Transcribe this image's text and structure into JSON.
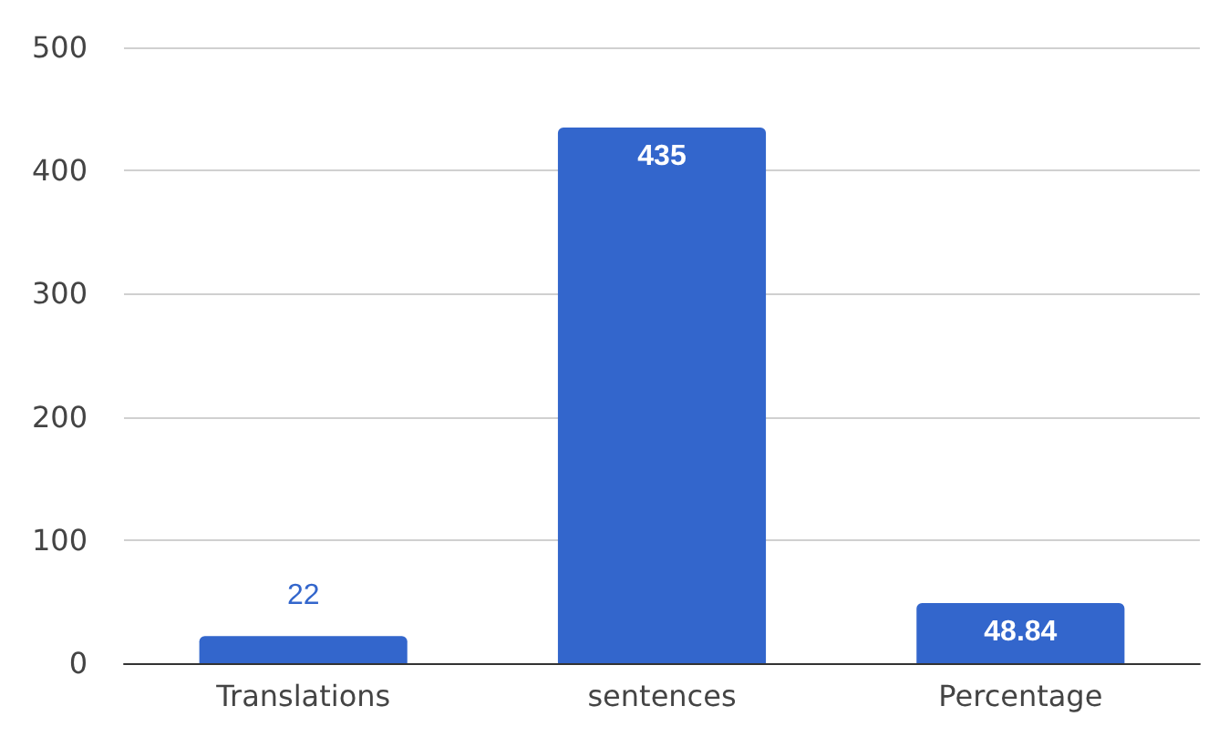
{
  "chart_data": {
    "type": "bar",
    "categories": [
      "Translations",
      "sentences",
      "Percentage"
    ],
    "values": [
      22,
      435,
      48.84
    ],
    "color": "#3366cc",
    "ylim": [
      0,
      500
    ],
    "yticks": [
      0,
      100,
      200,
      300,
      400,
      500
    ],
    "grid": "y",
    "data_labels": true
  }
}
